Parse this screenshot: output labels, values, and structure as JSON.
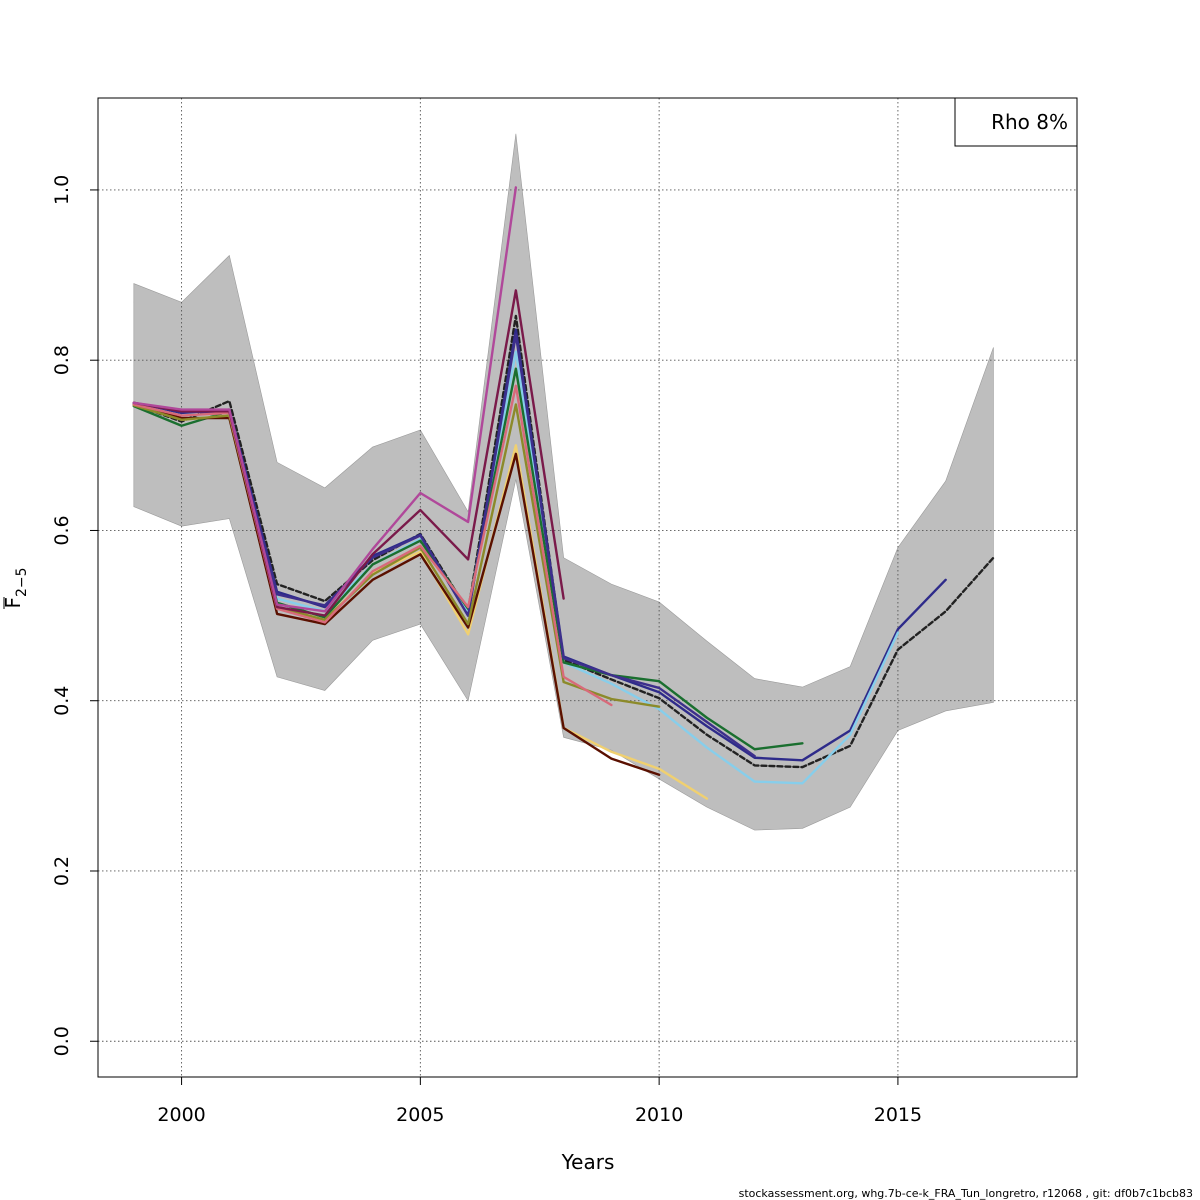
{
  "chart_data": {
    "type": "line",
    "xlabel": "Years",
    "ylabel_main": "F",
    "ylabel_sub": "2−5",
    "xlim": [
      1998.25,
      2018.75
    ],
    "ylim": [
      -0.042,
      1.108
    ],
    "x_ticks": [
      2000,
      2005,
      2010,
      2015
    ],
    "y_ticks": [
      0.0,
      0.2,
      0.4,
      0.6,
      0.8,
      1.0
    ],
    "y_tick_labels": [
      "0.0",
      "0.2",
      "0.4",
      "0.6",
      "0.8",
      "1.0"
    ],
    "grid": true,
    "legend": {
      "text": "Rho 8%",
      "placement": "top-right"
    },
    "confidence_band": {
      "color": "#bebebe",
      "x": [
        1999,
        2000,
        2001,
        2002,
        2003,
        2004,
        2005,
        2006,
        2007,
        2008,
        2009,
        2010,
        2011,
        2012,
        2013,
        2014,
        2015,
        2016,
        2017
      ],
      "upper": [
        0.89,
        0.868,
        0.923,
        0.68,
        0.65,
        0.698,
        0.718,
        0.622,
        1.066,
        0.568,
        0.537,
        0.516,
        0.47,
        0.426,
        0.416,
        0.44,
        0.58,
        0.658,
        0.815
      ],
      "lower": [
        0.628,
        0.605,
        0.614,
        0.428,
        0.412,
        0.471,
        0.49,
        0.4,
        0.66,
        0.357,
        0.342,
        0.308,
        0.275,
        0.248,
        0.25,
        0.275,
        0.365,
        0.388,
        0.398
      ]
    },
    "series": [
      {
        "color": "#222222",
        "dashed": true,
        "x": [
          1999,
          2000,
          2001,
          2002,
          2003,
          2004,
          2005,
          2006,
          2007,
          2008,
          2009,
          2010,
          2011,
          2012,
          2013,
          2014,
          2015,
          2016,
          2017
        ],
        "values": [
          0.748,
          0.728,
          0.752,
          0.537,
          0.517,
          0.565,
          0.596,
          0.505,
          0.852,
          0.448,
          0.425,
          0.403,
          0.36,
          0.324,
          0.322,
          0.347,
          0.46,
          0.505,
          0.568
        ]
      },
      {
        "color": "#2e2b8a",
        "x": [
          1999,
          2000,
          2001,
          2002,
          2003,
          2004,
          2005,
          2006,
          2007,
          2008,
          2009,
          2010,
          2011,
          2012,
          2013,
          2014,
          2015,
          2016
        ],
        "values": [
          0.75,
          0.738,
          0.742,
          0.528,
          0.51,
          0.57,
          0.595,
          0.5,
          0.836,
          0.452,
          0.43,
          0.41,
          0.37,
          0.333,
          0.33,
          0.365,
          0.484,
          0.542
        ]
      },
      {
        "color": "#87ceeb",
        "x": [
          1999,
          2000,
          2001,
          2002,
          2003,
          2004,
          2005,
          2006,
          2007,
          2008,
          2009,
          2010,
          2011,
          2012,
          2013,
          2014,
          2015
        ],
        "values": [
          0.748,
          0.735,
          0.738,
          0.52,
          0.505,
          0.56,
          0.59,
          0.505,
          0.81,
          0.445,
          0.42,
          0.39,
          0.345,
          0.305,
          0.303,
          0.36,
          0.48
        ]
      },
      {
        "color": "#1a6f2f",
        "x": [
          1999,
          2000,
          2001,
          2002,
          2003,
          2004,
          2005,
          2006,
          2007,
          2008,
          2009,
          2010,
          2011,
          2012,
          2013
        ],
        "values": [
          0.746,
          0.723,
          0.74,
          0.515,
          0.498,
          0.56,
          0.588,
          0.508,
          0.79,
          0.445,
          0.43,
          0.423,
          0.38,
          0.343,
          0.35
        ]
      },
      {
        "color": "#3d2f8c",
        "x": [
          1999,
          2000,
          2001,
          2002,
          2003,
          2004,
          2005,
          2006,
          2007,
          2008,
          2009,
          2010,
          2011,
          2012
        ],
        "values": [
          0.749,
          0.74,
          0.738,
          0.525,
          0.512,
          0.568,
          0.594,
          0.5,
          0.83,
          0.45,
          0.43,
          0.415,
          0.375,
          0.335
        ]
      },
      {
        "color": "#f0d070",
        "x": [
          1999,
          2000,
          2001,
          2002,
          2003,
          2004,
          2005,
          2006,
          2007,
          2008,
          2009,
          2010,
          2011
        ],
        "values": [
          0.748,
          0.73,
          0.735,
          0.51,
          0.495,
          0.55,
          0.575,
          0.478,
          0.7,
          0.368,
          0.34,
          0.32,
          0.285
        ]
      },
      {
        "color": "#5a1000",
        "x": [
          1999,
          2000,
          2001,
          2002,
          2003,
          2004,
          2005,
          2006,
          2007,
          2008,
          2009,
          2010
        ],
        "values": [
          0.748,
          0.732,
          0.732,
          0.502,
          0.49,
          0.542,
          0.572,
          0.486,
          0.69,
          0.368,
          0.332,
          0.313
        ]
      },
      {
        "color": "#8c8a2a",
        "x": [
          1999,
          2000,
          2001,
          2002,
          2003,
          2004,
          2005,
          2006,
          2007,
          2008,
          2009,
          2010
        ],
        "values": [
          0.747,
          0.73,
          0.735,
          0.51,
          0.495,
          0.548,
          0.58,
          0.49,
          0.748,
          0.422,
          0.402,
          0.393
        ]
      },
      {
        "color": "#d86a7a",
        "x": [
          1999,
          2000,
          2001,
          2002,
          2003,
          2004,
          2005,
          2006,
          2007,
          2008,
          2009
        ],
        "values": [
          0.748,
          0.735,
          0.738,
          0.508,
          0.492,
          0.552,
          0.582,
          0.51,
          0.77,
          0.428,
          0.395
        ]
      },
      {
        "color": "#7a1a4a",
        "x": [
          1999,
          2000,
          2001,
          2002,
          2003,
          2004,
          2005,
          2006,
          2007,
          2008
        ],
        "values": [
          0.75,
          0.74,
          0.74,
          0.51,
          0.5,
          0.572,
          0.624,
          0.566,
          0.882,
          0.52
        ]
      },
      {
        "color": "#b0489a",
        "x": [
          1999,
          2000,
          2001,
          2002,
          2003,
          2004,
          2005,
          2006,
          2007
        ],
        "values": [
          0.75,
          0.742,
          0.742,
          0.513,
          0.505,
          0.578,
          0.644,
          0.61,
          1.003
        ]
      }
    ]
  },
  "footer": {
    "text": "stockassessment.org, whg.7b-ce-k_FRA_Tun_longretro, r12068 , git: df0b7c1bcb83"
  }
}
